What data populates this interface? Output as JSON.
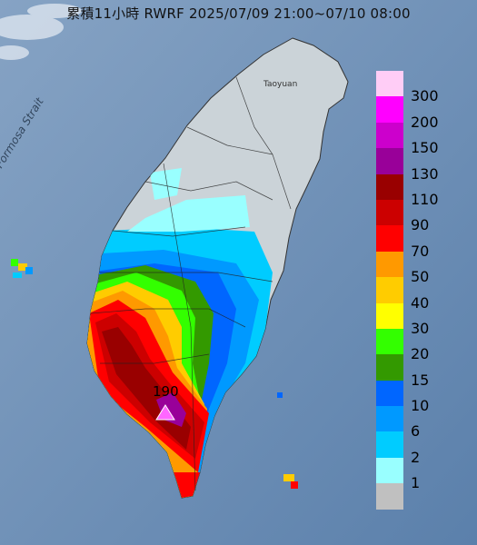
{
  "title": "累積11小時 RWRF 2025/07/09 21:00~07/10 08:00",
  "strait_label": "Formosa Strait",
  "city_label": "Taoyuan",
  "max_value_label": "190",
  "legend": [
    {
      "label": "300",
      "color": "#ffcdf6"
    },
    {
      "label": "200",
      "color": "#ff00ff"
    },
    {
      "label": "150",
      "color": "#cc00cc"
    },
    {
      "label": "130",
      "color": "#990099"
    },
    {
      "label": "110",
      "color": "#990000"
    },
    {
      "label": "90",
      "color": "#cc0000"
    },
    {
      "label": "70",
      "color": "#ff0000"
    },
    {
      "label": "50",
      "color": "#ff9900"
    },
    {
      "label": "40",
      "color": "#ffcc00"
    },
    {
      "label": "30",
      "color": "#ffff00"
    },
    {
      "label": "20",
      "color": "#33ff00"
    },
    {
      "label": "15",
      "color": "#339900"
    },
    {
      "label": "10",
      "color": "#0066ff"
    },
    {
      "label": "6",
      "color": "#0099ff"
    },
    {
      "label": "2",
      "color": "#00ccff"
    },
    {
      "label": "1",
      "color": "#99ffff"
    },
    {
      "label": "",
      "color": "#c0c0c0"
    }
  ]
}
